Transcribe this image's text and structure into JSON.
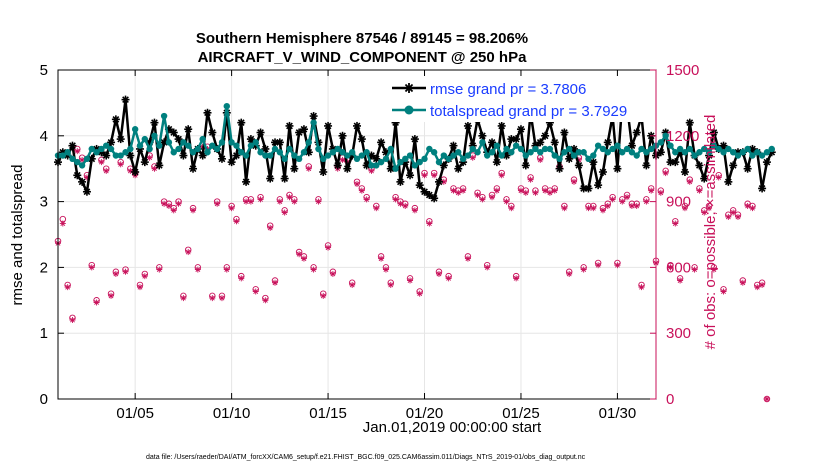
{
  "chart_data": {
    "type": "line",
    "title": "Southern Hemisphere 87546 / 89145 = 98.206%",
    "subtitle": "AIRCRAFT_V_WIND_COMPONENT @ 250 hPa",
    "xlabel": "Jan.01,2019 00:00:00 start",
    "ylabel": "rmse and totalspread",
    "ylabel_right": "# of obs: o=possible; ×=assimilated",
    "x_start": 1,
    "x_step": 0.25,
    "xlim": [
      1,
      32
    ],
    "xticks": [
      {
        "day": 5,
        "label": "01/05"
      },
      {
        "day": 10,
        "label": "01/10"
      },
      {
        "day": 15,
        "label": "01/15"
      },
      {
        "day": 20,
        "label": "01/20"
      },
      {
        "day": 25,
        "label": "01/25"
      },
      {
        "day": 30,
        "label": "01/30"
      }
    ],
    "ylim": [
      0,
      5
    ],
    "yticks": [
      "0",
      "1",
      "2",
      "3",
      "4",
      "5"
    ],
    "ylim_right": [
      0,
      1500
    ],
    "yticks_right": [
      "0",
      "300",
      "600",
      "900",
      "1200",
      "1500"
    ],
    "legend": [
      {
        "label": "rmse grand pr = 3.7806",
        "color": "#000000"
      },
      {
        "label": "totalspread grand pr = 3.7929",
        "color": "#00807f"
      }
    ],
    "series": [
      {
        "name": "rmse",
        "color": "#000000",
        "values": [
          3.6,
          3.75,
          3.7,
          3.85,
          3.4,
          3.3,
          3.15,
          3.65,
          3.8,
          3.75,
          3.7,
          3.9,
          4.25,
          3.95,
          4.55,
          3.7,
          3.45,
          3.8,
          3.6,
          3.9,
          4.2,
          3.55,
          3.9,
          4.1,
          4.05,
          3.95,
          3.7,
          4.1,
          3.5,
          3.8,
          3.7,
          4.35,
          4.05,
          3.8,
          3.65,
          4.35,
          3.6,
          3.7,
          4.2,
          3.3,
          3.95,
          3.85,
          4.05,
          3.8,
          3.35,
          3.9,
          3.9,
          3.35,
          4.15,
          3.5,
          4.05,
          4.1,
          3.75,
          4.3,
          3.9,
          3.45,
          4.15,
          3.8,
          3.55,
          4.0,
          3.5,
          3.7,
          4.15,
          3.95,
          3.55,
          3.7,
          3.65,
          3.9,
          3.75,
          3.5,
          4.2,
          3.3,
          3.6,
          3.4,
          3.95,
          3.25,
          3.15,
          3.1,
          3.05,
          3.3,
          3.55,
          3.65,
          3.85,
          3.5,
          3.6,
          4.15,
          3.85,
          4.25,
          4.0,
          3.75,
          3.9,
          3.6,
          4.15,
          3.7,
          3.95,
          3.95,
          4.1,
          3.55,
          4.35,
          3.85,
          3.9,
          4.0,
          4.2,
          3.9,
          3.5,
          4.05,
          3.65,
          3.8,
          3.55,
          3.2,
          3.2,
          3.6,
          3.25,
          3.45,
          3.9,
          4.3,
          3.5,
          4.5,
          4.45,
          3.85,
          4.05,
          4.3,
          3.55,
          4.0,
          3.7,
          3.75,
          4.05,
          3.6,
          3.6,
          3.75,
          3.45,
          4.2,
          3.7,
          3.55,
          3.35,
          3.7,
          4.05,
          3.8,
          3.85,
          3.3,
          3.55,
          3.75,
          3.75,
          3.5,
          3.8,
          3.75,
          3.2,
          3.6,
          3.75
        ],
        "markers": "asterisk"
      },
      {
        "name": "totalspread",
        "color": "#00807f",
        "values": [
          3.7,
          3.7,
          3.75,
          3.65,
          3.6,
          3.55,
          3.65,
          3.8,
          3.75,
          3.8,
          3.85,
          3.8,
          3.7,
          3.7,
          3.75,
          3.8,
          4.1,
          3.85,
          3.95,
          3.8,
          4.0,
          3.85,
          4.3,
          3.9,
          3.75,
          3.8,
          3.9,
          3.85,
          3.75,
          3.8,
          3.95,
          3.75,
          3.85,
          3.8,
          3.9,
          4.45,
          3.9,
          3.85,
          3.75,
          3.7,
          3.85,
          3.9,
          3.75,
          3.7,
          3.7,
          3.8,
          3.75,
          3.65,
          3.8,
          3.7,
          3.65,
          3.75,
          3.9,
          4.2,
          3.8,
          3.65,
          3.7,
          3.75,
          3.8,
          3.75,
          3.7,
          3.75,
          3.65,
          3.7,
          3.75,
          3.55,
          3.55,
          3.6,
          3.65,
          3.8,
          3.5,
          3.6,
          3.65,
          3.7,
          3.55,
          3.6,
          3.65,
          3.8,
          3.75,
          3.6,
          3.7,
          3.65,
          3.7,
          3.75,
          3.65,
          3.7,
          3.8,
          3.75,
          3.9,
          3.7,
          3.75,
          3.85,
          3.7,
          3.8,
          3.75,
          3.85,
          3.8,
          3.7,
          3.75,
          3.8,
          3.75,
          3.8,
          3.8,
          3.7,
          3.65,
          3.75,
          3.8,
          3.7,
          3.75,
          3.75,
          3.65,
          3.7,
          3.85,
          3.8,
          3.75,
          3.8,
          3.85,
          3.75,
          3.8,
          3.75,
          3.7,
          3.8,
          3.75,
          3.8,
          3.85,
          3.9,
          4.0,
          3.85,
          3.75,
          3.8,
          3.75,
          3.8,
          3.7,
          3.75,
          3.8,
          3.75,
          3.85,
          3.8,
          3.75,
          3.8,
          3.75,
          3.7,
          3.75,
          3.8,
          3.7,
          3.75,
          3.7,
          3.75,
          3.8
        ],
        "markers": "dot"
      },
      {
        "name": "possible",
        "axis": "right",
        "color": "#c8105a",
        "markers": "circle",
        "values": [
          720,
          820,
          520,
          370,
          1140,
          1100,
          1020,
          610,
          450,
          1090,
          1050,
          480,
          580,
          1080,
          590,
          1050,
          1030,
          520,
          570,
          1110,
          1060,
          600,
          900,
          890,
          870,
          900,
          470,
          680,
          870,
          600,
          1160,
          1150,
          470,
          900,
          470,
          600,
          880,
          820,
          560,
          910,
          910,
          500,
          920,
          460,
          790,
          540,
          910,
          860,
          930,
          910,
          670,
          650,
          1060,
          600,
          910,
          480,
          700,
          580,
          1060,
          1100,
          1090,
          530,
          990,
          960,
          920,
          1050,
          880,
          650,
          600,
          530,
          920,
          900,
          890,
          550,
          870,
          490,
          1030,
          810,
          1030,
          580,
          1000,
          560,
          960,
          950,
          960,
          650,
          1110,
          940,
          920,
          610,
          930,
          960,
          1030,
          910,
          880,
          560,
          960,
          950,
          1010,
          950,
          1100,
          960,
          950,
          960,
          1060,
          880,
          580,
          1000,
          1100,
          600,
          880,
          880,
          620,
          870,
          890,
          920,
          620,
          910,
          930,
          890,
          890,
          520,
          910,
          960,
          630,
          950,
          1040,
          610,
          810,
          550,
          880,
          1000,
          600,
          960,
          860,
          880,
          600,
          1020,
          500,
          840,
          860,
          840,
          540,
          890,
          880,
          520,
          530,
          0
        ]
      },
      {
        "name": "assimilated",
        "axis": "right",
        "color": "#c8105a",
        "markers": "asterisk",
        "values": [
          710,
          800,
          510,
          360,
          1130,
          1090,
          1010,
          600,
          440,
          1080,
          1040,
          470,
          570,
          1070,
          580,
          1040,
          1020,
          510,
          560,
          1100,
          1050,
          590,
          890,
          880,
          860,
          890,
          460,
          670,
          860,
          590,
          1150,
          1140,
          460,
          890,
          460,
          590,
          870,
          810,
          550,
          900,
          900,
          490,
          910,
          450,
          780,
          530,
          900,
          850,
          920,
          900,
          660,
          640,
          1050,
          590,
          900,
          470,
          690,
          570,
          1050,
          1090,
          1080,
          520,
          980,
          950,
          910,
          1040,
          870,
          640,
          590,
          520,
          910,
          890,
          880,
          540,
          860,
          480,
          1020,
          800,
          1020,
          570,
          990,
          550,
          950,
          940,
          950,
          640,
          1100,
          930,
          910,
          600,
          920,
          950,
          1020,
          900,
          870,
          550,
          950,
          940,
          1000,
          940,
          1090,
          950,
          940,
          950,
          1050,
          870,
          570,
          990,
          1090,
          590,
          870,
          870,
          610,
          860,
          880,
          910,
          610,
          900,
          920,
          880,
          880,
          510,
          900,
          950,
          620,
          940,
          1030,
          600,
          800,
          540,
          870,
          990,
          590,
          950,
          850,
          870,
          590,
          1010,
          490,
          830,
          850,
          830,
          530,
          880,
          870,
          510,
          520,
          0
        ]
      }
    ]
  },
  "footer": {
    "text": "data file: /Users/raeder/DAI/ATM_forcXX/CAM6_setup/f.e21.FHIST_BGC.f09_025.CAM6assim.011/Diags_NTrS_2019-01/obs_diag_output.nc"
  },
  "colors": {
    "left_axis": "#000000",
    "right_axis": "#c8105a",
    "legend_text": "#1a3cff",
    "grid": "#e6e6e6"
  }
}
